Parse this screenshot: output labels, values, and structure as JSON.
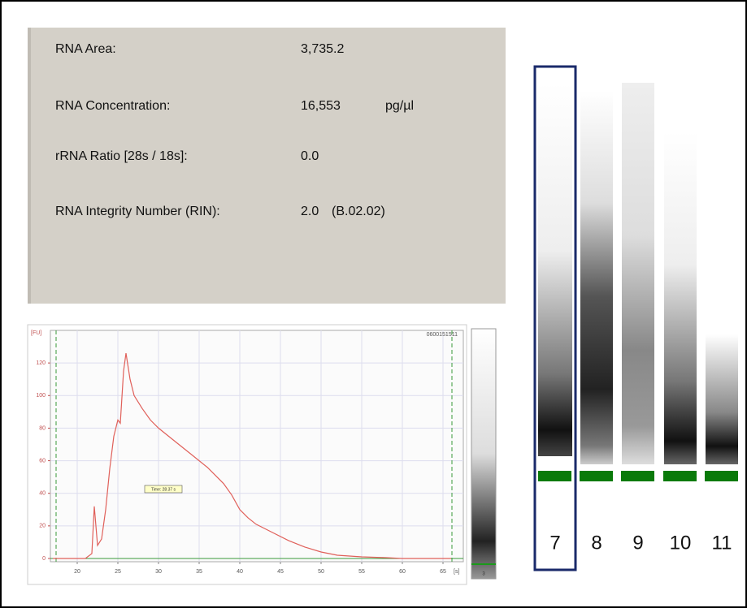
{
  "info": {
    "rows": [
      [
        "RNA Area:",
        "3,735.2"
      ],
      [
        "RNA Concentration:",
        "16,553",
        "pg/µl"
      ],
      [
        "rRNA Ratio [28s / 18s]:",
        "0.0"
      ],
      [
        "RNA Integrity Number (RIN):",
        "2.0",
        "(B.02.02)"
      ]
    ]
  },
  "gel": {
    "lanes": [
      "7",
      "8",
      "9",
      "10",
      "11"
    ],
    "selected": 0
  },
  "chart_data": {
    "type": "line",
    "y_label": "[FU]",
    "x_label": "[s]",
    "chip_id": "0600151511",
    "annotation": "Time: 28.37 s",
    "x": [
      17,
      21,
      21.8,
      22.1,
      22.5,
      23,
      23.5,
      24,
      24.5,
      25,
      25.3,
      25.7,
      26,
      26.5,
      27,
      28,
      29,
      30,
      32,
      34,
      36,
      38,
      39,
      40,
      41,
      42,
      44,
      46,
      48,
      50,
      52,
      55,
      58,
      60,
      66
    ],
    "values": [
      0,
      0,
      3,
      32,
      8,
      12,
      30,
      55,
      75,
      85,
      83,
      115,
      126,
      110,
      100,
      92,
      85,
      80,
      72,
      64,
      56,
      46,
      39,
      30,
      25,
      21,
      16,
      11,
      7,
      4,
      2,
      1,
      0.5,
      0,
      0
    ],
    "color": "#e0605a",
    "xlim": [
      16.7,
      67.5
    ],
    "ylim": [
      -2,
      140
    ],
    "xticks": [
      20,
      25,
      30,
      35,
      40,
      45,
      50,
      55,
      60,
      65
    ],
    "yticks": [
      0,
      20,
      40,
      60,
      80,
      100,
      120
    ],
    "grid": true,
    "marker_lines": [
      17.4,
      66.1
    ],
    "marker_color": "#3a9a3a"
  }
}
